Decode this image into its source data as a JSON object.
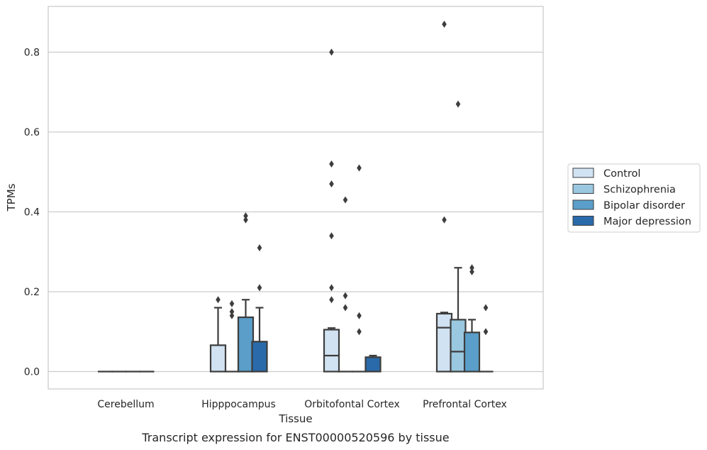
{
  "chart_data": {
    "type": "box",
    "caption": "Transcript expression for ENST00000520596 by tissue",
    "xlabel": "Tissue",
    "ylabel": "TPMs",
    "ylim": [
      -0.042,
      0.915
    ],
    "yticks": [
      0.0,
      0.2,
      0.4,
      0.6,
      0.8
    ],
    "ytick_labels": [
      "0.0",
      "0.2",
      "0.4",
      "0.6",
      "0.8"
    ],
    "grid": "horizontal",
    "legend_position": "right",
    "categories": [
      "Cerebellum",
      "Hipppocampus",
      "Orbitofontal Cortex",
      "Prefrontal Cortex"
    ],
    "series": [
      {
        "name": "Control",
        "color": "#d1e2f2",
        "boxes": [
          {
            "q1": 0,
            "median": 0,
            "q3": 0,
            "whisker_low": 0,
            "whisker_high": 0,
            "outliers": []
          },
          {
            "q1": 0,
            "median": 0,
            "q3": 0.066,
            "whisker_low": 0,
            "whisker_high": 0.16,
            "outliers": [
              0.18
            ]
          },
          {
            "q1": 0,
            "median": 0.04,
            "q3": 0.105,
            "whisker_low": 0,
            "whisker_high": 0.109,
            "outliers": [
              0.8,
              0.52,
              0.47,
              0.34,
              0.21,
              0.18
            ]
          },
          {
            "q1": 0,
            "median": 0.11,
            "q3": 0.145,
            "whisker_low": 0,
            "whisker_high": 0.148,
            "outliers": [
              0.87,
              0.38
            ]
          }
        ]
      },
      {
        "name": "Schizophrenia",
        "color": "#9ac8e0",
        "boxes": [
          {
            "q1": 0,
            "median": 0,
            "q3": 0,
            "whisker_low": 0,
            "whisker_high": 0,
            "outliers": []
          },
          {
            "q1": 0,
            "median": 0,
            "q3": 0,
            "whisker_low": 0,
            "whisker_high": 0,
            "outliers": [
              0.17,
              0.15,
              0.14
            ]
          },
          {
            "q1": 0,
            "median": 0,
            "q3": 0,
            "whisker_low": 0,
            "whisker_high": 0,
            "outliers": [
              0.43,
              0.19,
              0.16
            ]
          },
          {
            "q1": 0,
            "median": 0.05,
            "q3": 0.13,
            "whisker_low": 0,
            "whisker_high": 0.26,
            "outliers": [
              0.67
            ]
          }
        ]
      },
      {
        "name": "Bipolar disorder",
        "color": "#5a9ec9",
        "boxes": [
          {
            "q1": 0,
            "median": 0,
            "q3": 0,
            "whisker_low": 0,
            "whisker_high": 0,
            "outliers": []
          },
          {
            "q1": 0,
            "median": 0,
            "q3": 0.136,
            "whisker_low": 0,
            "whisker_high": 0.18,
            "outliers": [
              0.39,
              0.38
            ]
          },
          {
            "q1": 0,
            "median": 0,
            "q3": 0,
            "whisker_low": 0,
            "whisker_high": 0,
            "outliers": [
              0.51,
              0.14,
              0.1
            ]
          },
          {
            "q1": 0,
            "median": 0,
            "q3": 0.098,
            "whisker_low": 0,
            "whisker_high": 0.13,
            "outliers": [
              0.26,
              0.25
            ]
          }
        ]
      },
      {
        "name": "Major depression",
        "color": "#2a6aaa",
        "boxes": [
          {
            "q1": 0,
            "median": 0,
            "q3": 0,
            "whisker_low": 0,
            "whisker_high": 0,
            "outliers": []
          },
          {
            "q1": 0,
            "median": 0,
            "q3": 0.075,
            "whisker_low": 0,
            "whisker_high": 0.16,
            "outliers": [
              0.31,
              0.21
            ]
          },
          {
            "q1": 0,
            "median": 0,
            "q3": 0.036,
            "whisker_low": 0,
            "whisker_high": 0.04,
            "outliers": []
          },
          {
            "q1": 0,
            "median": 0,
            "q3": 0,
            "whisker_low": 0,
            "whisker_high": 0,
            "outliers": [
              0.16,
              0.1
            ]
          }
        ]
      }
    ]
  }
}
